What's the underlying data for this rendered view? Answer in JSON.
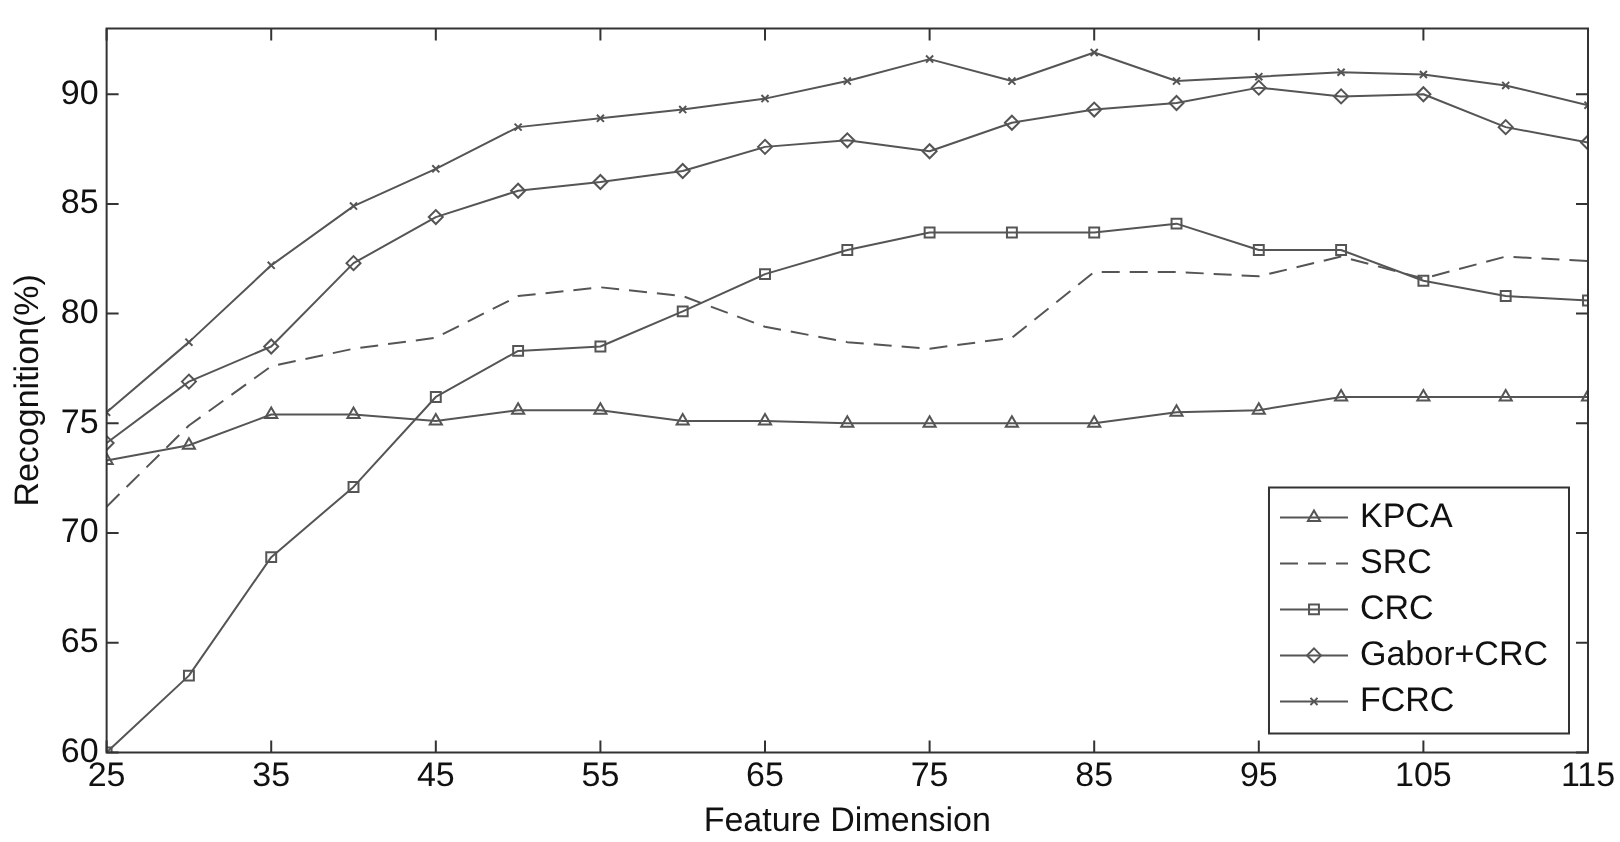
{
  "chart_data": {
    "type": "line",
    "xlabel": "Feature Dimension",
    "ylabel": "Recognition(%)",
    "x": [
      25,
      30,
      35,
      40,
      45,
      50,
      55,
      60,
      65,
      70,
      75,
      80,
      85,
      90,
      95,
      100,
      105,
      110,
      115
    ],
    "xlim": [
      25,
      115
    ],
    "xticks": [
      25,
      35,
      45,
      55,
      65,
      75,
      85,
      95,
      105,
      115
    ],
    "ylim": [
      60,
      93
    ],
    "yticks": [
      60,
      65,
      70,
      75,
      80,
      85,
      90
    ],
    "grid": false,
    "legend": "bottom right",
    "series": [
      {
        "name": "KPCA",
        "color": "#555555",
        "marker": "triangle",
        "line_style": "solid",
        "values": [
          73.3,
          74.0,
          75.4,
          75.4,
          75.1,
          75.6,
          75.6,
          75.1,
          75.1,
          75.0,
          75.0,
          75.0,
          75.0,
          75.5,
          75.6,
          76.2,
          76.2,
          76.2,
          76.2
        ]
      },
      {
        "name": "SRC",
        "color": "#555555",
        "marker": "none",
        "line_style": "dashed",
        "values": [
          71.2,
          74.9,
          77.6,
          78.4,
          78.9,
          80.8,
          81.2,
          80.8,
          79.4,
          78.7,
          78.4,
          78.9,
          81.9,
          81.9,
          81.7,
          82.6,
          81.6,
          82.6,
          82.4
        ]
      },
      {
        "name": "CRC",
        "color": "#555555",
        "marker": "square",
        "line_style": "solid",
        "values": [
          60.0,
          63.5,
          68.9,
          72.1,
          76.2,
          78.3,
          78.5,
          80.1,
          81.8,
          82.9,
          83.7,
          83.7,
          83.7,
          84.1,
          82.9,
          82.9,
          81.5,
          80.8,
          80.6
        ]
      },
      {
        "name": "Gabor+CRC",
        "color": "#555555",
        "marker": "diamond",
        "line_style": "solid",
        "values": [
          74.1,
          76.9,
          78.5,
          82.3,
          84.4,
          85.6,
          86.0,
          86.5,
          87.6,
          87.9,
          87.4,
          88.7,
          89.3,
          89.6,
          90.3,
          89.9,
          90.0,
          88.5,
          87.8
        ]
      },
      {
        "name": "FCRC",
        "color": "#555555",
        "marker": "cross",
        "line_style": "solid",
        "values": [
          75.5,
          78.7,
          82.2,
          84.9,
          86.6,
          88.5,
          88.9,
          89.3,
          89.8,
          90.6,
          91.6,
          90.6,
          91.9,
          90.6,
          90.8,
          91.0,
          90.9,
          90.4,
          89.5
        ]
      }
    ]
  }
}
